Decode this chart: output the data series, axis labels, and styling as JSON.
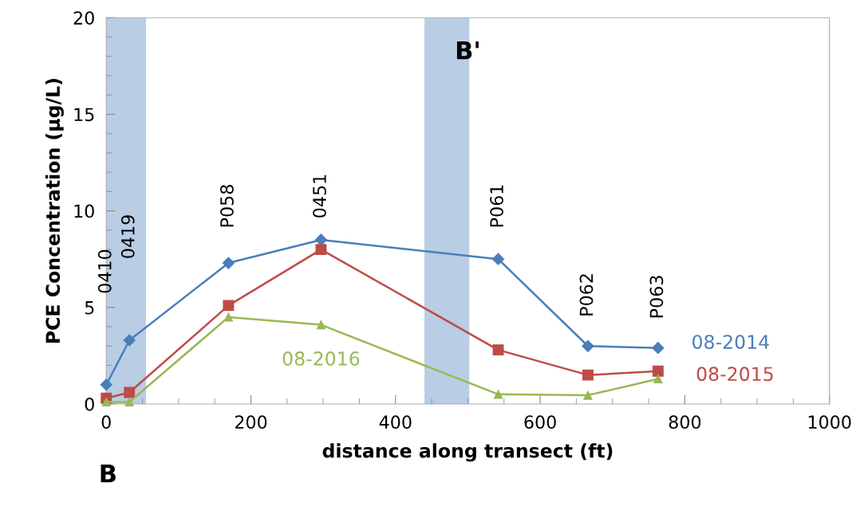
{
  "chart_data": {
    "type": "line",
    "xlabel": "distance along transect (ft)",
    "ylabel": "PCE Concentration (µg/L)",
    "x": [
      0,
      32,
      169,
      297,
      542,
      666,
      763
    ],
    "series": [
      {
        "name": "08-2014",
        "color": "#4a7ebb",
        "marker": "diamond",
        "values": [
          1.0,
          3.3,
          7.3,
          8.5,
          7.5,
          3.0,
          2.9
        ]
      },
      {
        "name": "08-2015",
        "color": "#be4b48",
        "marker": "square",
        "values": [
          0.3,
          0.6,
          5.1,
          8.0,
          2.8,
          1.5,
          1.7
        ]
      },
      {
        "name": "08-2016",
        "color": "#98b954",
        "marker": "triangle",
        "values": [
          0.1,
          0.1,
          4.5,
          4.1,
          0.5,
          0.45,
          1.3
        ]
      }
    ],
    "xlim": [
      0,
      1000
    ],
    "xticks": [
      0,
      200,
      400,
      600,
      800,
      1000
    ],
    "ylim": [
      0,
      20
    ],
    "yticks": [
      0,
      5,
      10,
      15,
      20
    ],
    "grid": false,
    "legend": false,
    "line_style": "solid",
    "bands": [
      {
        "axis": "x",
        "from": 0,
        "to": 55,
        "color": "#b9cde5"
      },
      {
        "axis": "x",
        "from": 440,
        "to": 502,
        "color": "#b9cde5"
      }
    ],
    "annotations": [
      "0410",
      "0419",
      "P058",
      "0451",
      "P061",
      "P062",
      "P063",
      "B'",
      "B"
    ]
  }
}
